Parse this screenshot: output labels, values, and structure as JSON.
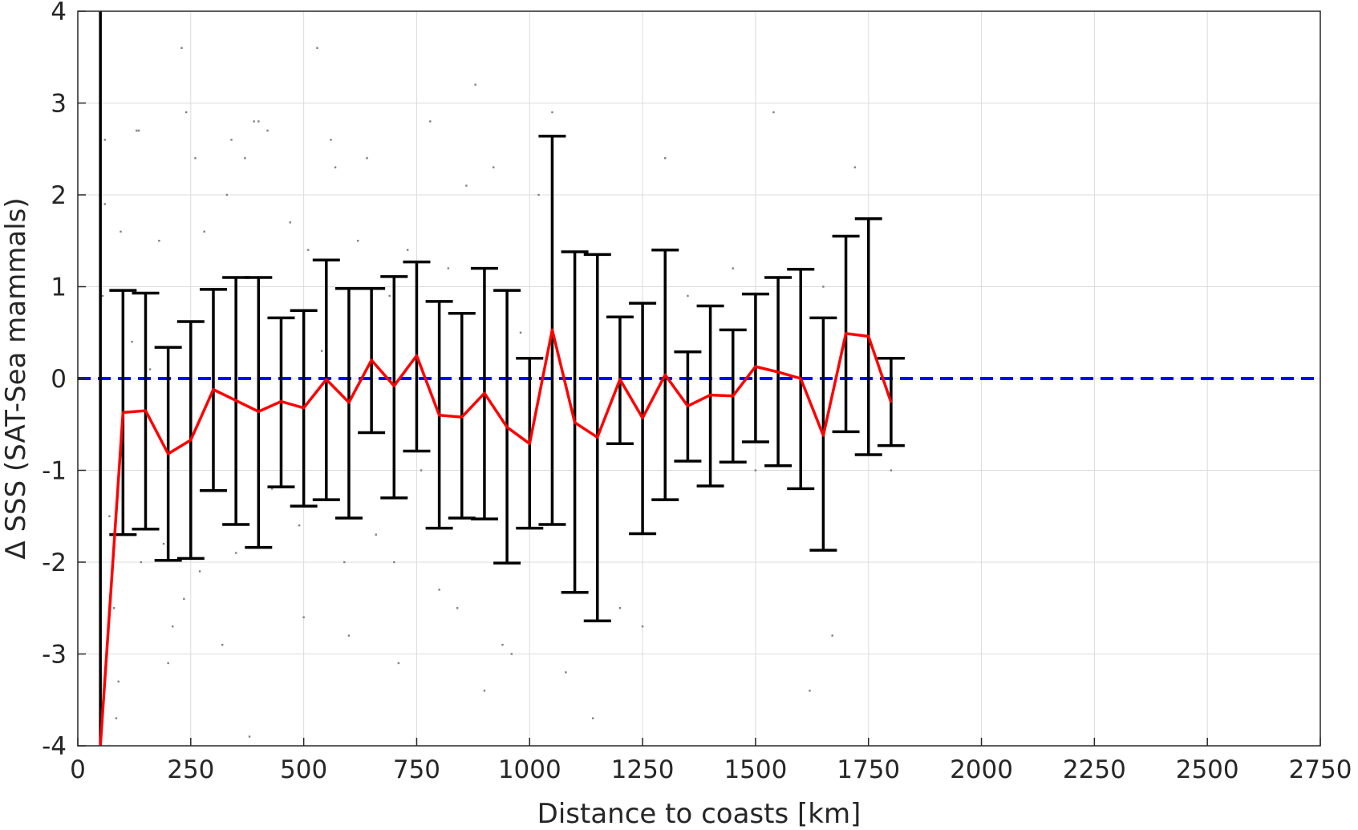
{
  "chart_data": {
    "type": "line",
    "title": "",
    "xlabel": "Distance to coasts [km]",
    "ylabel": "Δ SSS (SAT-Sea mammals)",
    "xlim": [
      0,
      2750
    ],
    "ylim": [
      -4,
      4
    ],
    "x_ticks": [
      0,
      250,
      500,
      750,
      1000,
      1250,
      1500,
      1750,
      2000,
      2250,
      2500,
      2750
    ],
    "y_ticks": [
      -4,
      -3,
      -2,
      -1,
      0,
      1,
      2,
      3,
      4
    ],
    "grid": true,
    "legend": "none",
    "colors": {
      "mean_line": "#ff0000",
      "error_bars": "#000000",
      "zero_line": "#0000ff",
      "scatter": "#808080",
      "grid": "#dcdcdc"
    },
    "series": [
      {
        "type": "line_with_error_bars",
        "x": [
          50,
          100,
          150,
          200,
          250,
          300,
          350,
          400,
          450,
          500,
          550,
          600,
          650,
          700,
          750,
          800,
          850,
          900,
          950,
          1000,
          1050,
          1100,
          1150,
          1200,
          1250,
          1300,
          1350,
          1400,
          1450,
          1500,
          1550,
          1600,
          1650,
          1700,
          1750,
          1800
        ],
        "y": [
          -4.0,
          -0.37,
          -0.35,
          -0.82,
          -0.67,
          -0.12,
          -0.24,
          -0.36,
          -0.25,
          -0.32,
          -0.01,
          -0.26,
          0.2,
          -0.08,
          0.25,
          -0.4,
          -0.42,
          -0.16,
          -0.53,
          -0.71,
          0.53,
          -0.48,
          -0.64,
          -0.01,
          -0.43,
          0.04,
          -0.3,
          -0.18,
          -0.19,
          0.13,
          0.07,
          0.0,
          -0.62,
          0.49,
          0.46,
          -0.26
        ],
        "upper": [
          4.0,
          0.96,
          0.93,
          0.34,
          0.62,
          0.97,
          1.1,
          1.1,
          0.66,
          0.74,
          1.29,
          0.98,
          0.98,
          1.11,
          1.27,
          0.84,
          0.71,
          1.2,
          0.96,
          0.22,
          2.64,
          1.38,
          1.35,
          0.67,
          0.82,
          1.4,
          0.29,
          0.79,
          0.53,
          0.92,
          1.1,
          1.19,
          0.66,
          1.55,
          1.74,
          0.22
        ],
        "lower": [
          -4.0,
          -1.7,
          -1.64,
          -1.98,
          -1.96,
          -1.22,
          -1.59,
          -1.84,
          -1.18,
          -1.39,
          -1.32,
          -1.52,
          -0.59,
          -1.3,
          -0.79,
          -1.63,
          -1.52,
          -1.53,
          -2.01,
          -1.63,
          -1.59,
          -2.33,
          -2.64,
          -0.71,
          -1.69,
          -1.32,
          -0.9,
          -1.17,
          -0.91,
          -0.69,
          -0.95,
          -1.2,
          -1.87,
          -0.58,
          -0.83,
          -0.73
        ]
      },
      {
        "type": "reference_line",
        "y": 0
      },
      {
        "type": "scatter",
        "description_points": [
          [
            60,
            2.6
          ],
          [
            60,
            1.9
          ],
          [
            55,
            0.9
          ],
          [
            70,
            -1.5
          ],
          [
            80,
            -2.5
          ],
          [
            90,
            -3.3
          ],
          [
            85,
            -3.7
          ],
          [
            95,
            1.6
          ],
          [
            120,
            0.4
          ],
          [
            130,
            2.7
          ],
          [
            135,
            2.7
          ],
          [
            140,
            -2.0
          ],
          [
            160,
            0.1
          ],
          [
            180,
            1.5
          ],
          [
            190,
            -1.8
          ],
          [
            200,
            -3.1
          ],
          [
            210,
            -2.7
          ],
          [
            230,
            3.6
          ],
          [
            235,
            -2.4
          ],
          [
            240,
            2.9
          ],
          [
            260,
            2.4
          ],
          [
            270,
            -2.1
          ],
          [
            280,
            1.6
          ],
          [
            300,
            -0.5
          ],
          [
            320,
            -2.9
          ],
          [
            330,
            2.0
          ],
          [
            340,
            2.6
          ],
          [
            350,
            -1.9
          ],
          [
            370,
            2.4
          ],
          [
            380,
            -3.9
          ],
          [
            390,
            2.8
          ],
          [
            400,
            2.8
          ],
          [
            420,
            2.7
          ],
          [
            430,
            -1.2
          ],
          [
            450,
            0.4
          ],
          [
            470,
            1.7
          ],
          [
            490,
            -1.6
          ],
          [
            500,
            -2.6
          ],
          [
            510,
            1.4
          ],
          [
            530,
            3.6
          ],
          [
            540,
            0.3
          ],
          [
            560,
            2.6
          ],
          [
            570,
            2.3
          ],
          [
            590,
            -2.0
          ],
          [
            600,
            -2.8
          ],
          [
            620,
            1.5
          ],
          [
            640,
            2.4
          ],
          [
            660,
            -1.7
          ],
          [
            690,
            0.9
          ],
          [
            700,
            -2.0
          ],
          [
            710,
            -3.1
          ],
          [
            730,
            1.4
          ],
          [
            750,
            0.5
          ],
          [
            760,
            -1.0
          ],
          [
            780,
            2.8
          ],
          [
            800,
            -2.3
          ],
          [
            820,
            1.2
          ],
          [
            840,
            -2.5
          ],
          [
            860,
            2.1
          ],
          [
            880,
            3.2
          ],
          [
            900,
            -3.4
          ],
          [
            920,
            2.3
          ],
          [
            940,
            -2.9
          ],
          [
            960,
            -3.0
          ],
          [
            980,
            0.5
          ],
          [
            1000,
            -1.5
          ],
          [
            1020,
            2.0
          ],
          [
            1050,
            2.9
          ],
          [
            1080,
            -3.2
          ],
          [
            1100,
            -1.8
          ],
          [
            1140,
            -3.7
          ],
          [
            1200,
            -2.5
          ],
          [
            1250,
            -2.7
          ],
          [
            1300,
            2.4
          ],
          [
            1350,
            0.9
          ],
          [
            1400,
            -0.5
          ],
          [
            1450,
            1.2
          ],
          [
            1500,
            -1.0
          ],
          [
            1540,
            2.9
          ],
          [
            1580,
            -1.2
          ],
          [
            1620,
            -3.4
          ],
          [
            1650,
            1.0
          ],
          [
            1670,
            -2.8
          ],
          [
            1720,
            2.3
          ],
          [
            1750,
            1.1
          ],
          [
            1800,
            -1.0
          ]
        ]
      }
    ]
  }
}
